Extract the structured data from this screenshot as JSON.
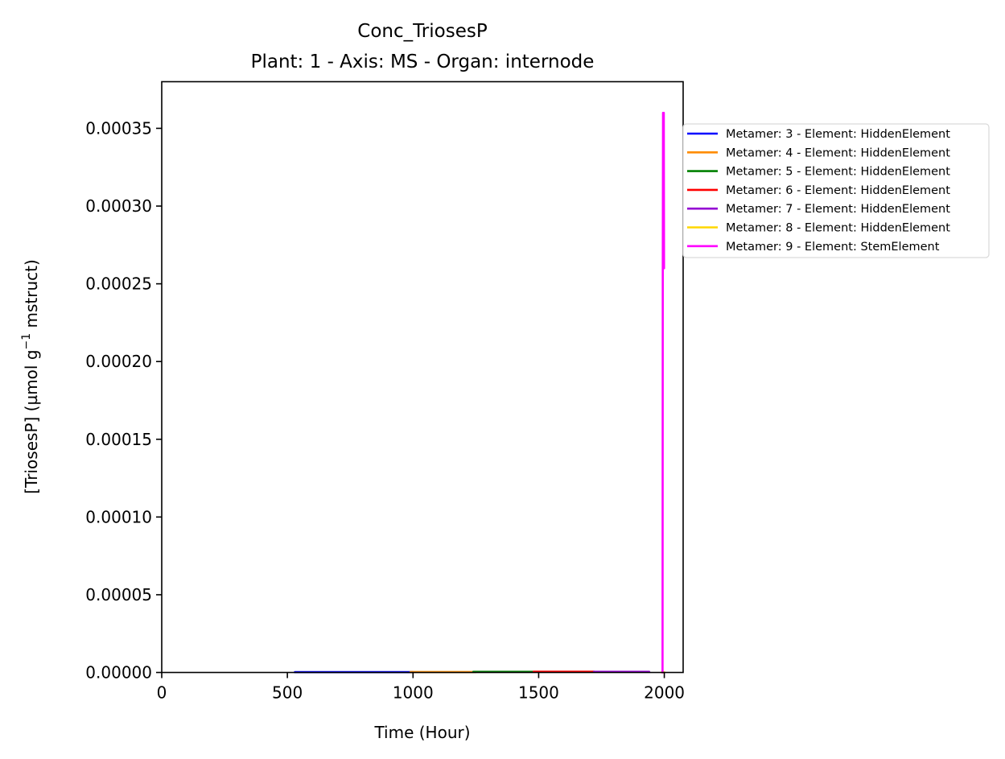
{
  "chart_data": {
    "type": "line",
    "title": "Conc_TriosesP",
    "subtitle": "Plant: 1 - Axis: MS - Organ: internode",
    "xlabel": "Time (Hour)",
    "ylabel_main": "[TriosesP] (µmol g",
    "ylabel_sup": "−1",
    "ylabel_tail": " mstruct)",
    "xlim": [
      0,
      2075
    ],
    "ylim": [
      0,
      0.00038
    ],
    "xticks": [
      0,
      500,
      1000,
      1500,
      2000
    ],
    "xtick_labels": [
      "0",
      "500",
      "1000",
      "1500",
      "2000"
    ],
    "yticks": [
      0,
      5e-05,
      0.0001,
      0.00015,
      0.0002,
      0.00025,
      0.0003,
      0.00035
    ],
    "ytick_labels": [
      "0.00000",
      "0.00005",
      "0.00010",
      "0.00015",
      "0.00020",
      "0.00025",
      "0.00030",
      "0.00035"
    ],
    "grid": false,
    "legend_position": "outside-right",
    "series": [
      {
        "name": "Metamer: 3 - Element: HiddenElement",
        "color": "#0000ff",
        "x": [
          530,
          750,
          1000
        ],
        "y": [
          2e-07,
          2e-07,
          2e-07
        ]
      },
      {
        "name": "Metamer: 4 - Element: HiddenElement",
        "color": "#ff8c00",
        "x": [
          990,
          1100,
          1250
        ],
        "y": [
          3e-07,
          3e-07,
          3e-07
        ]
      },
      {
        "name": "Metamer: 5 - Element: HiddenElement",
        "color": "#008000",
        "x": [
          1240,
          1350,
          1480
        ],
        "y": [
          4e-07,
          4e-07,
          4e-07
        ]
      },
      {
        "name": "Metamer: 6 - Element: HiddenElement",
        "color": "#ff0000",
        "x": [
          1480,
          1600,
          1720
        ],
        "y": [
          5e-07,
          5e-07,
          5e-07
        ]
      },
      {
        "name": "Metamer: 7 - Element: HiddenElement",
        "color": "#9400d3",
        "x": [
          1720,
          1830,
          1940
        ],
        "y": [
          4e-07,
          4e-07,
          4e-07
        ]
      },
      {
        "name": "Metamer: 8 - Element: HiddenElement",
        "color": "#ffd700",
        "x": [
          1990,
          2000
        ],
        "y": [
          1e-07,
          1e-07
        ]
      },
      {
        "name": "Metamer: 9 - Element: StemElement",
        "color": "#ff00ff",
        "x": [
          1993,
          1994,
          1995,
          1996,
          1997,
          1998,
          1999
        ],
        "y": [
          0,
          0.00026,
          0.00036,
          0.000355,
          0.00026,
          0.00036,
          0.00026
        ]
      }
    ]
  }
}
